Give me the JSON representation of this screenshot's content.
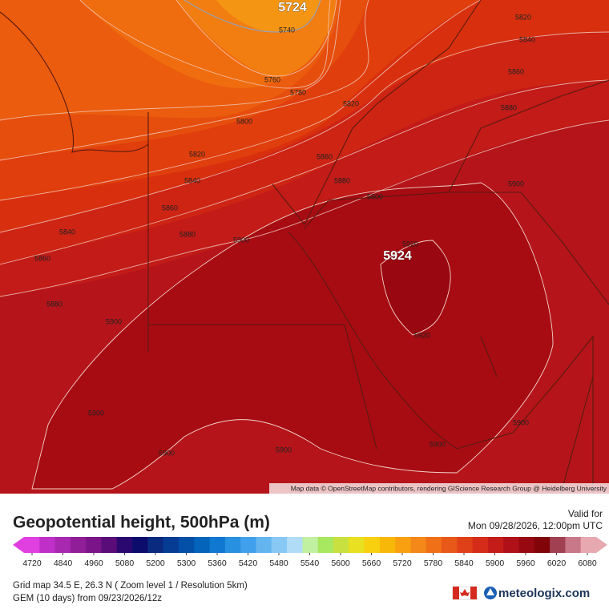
{
  "map": {
    "contour_labels": [
      "5724",
      "5740",
      "5820",
      "5840",
      "5760",
      "5780",
      "5860",
      "5820",
      "5880",
      "5800",
      "5820",
      "5860",
      "5840",
      "5880",
      "5900",
      "5900",
      "5860",
      "5840",
      "5880",
      "5900",
      "5920",
      "5924",
      "5860",
      "5880",
      "5900",
      "5920",
      "5900",
      "5900",
      "5900",
      "5900",
      "5900"
    ],
    "attribution": "Map data © OpenStreetMap contributors, rendering GIScience Research Group @ Heidelberg University"
  },
  "legend": {
    "title": "Geopotential height, 500hPa (m)",
    "valid_label": "Valid for",
    "valid_time": "Mon 09/28/2026, 12:00pm UTC",
    "colorbar_ticks": [
      4720,
      4840,
      4960,
      5080,
      5200,
      5300,
      5360,
      5420,
      5480,
      5540,
      5600,
      5660,
      5720,
      5780,
      5840,
      5900,
      5960,
      6020,
      6080
    ],
    "colorbar_colors": [
      "#e040e0",
      "#c030c8",
      "#a828b0",
      "#901e98",
      "#7a1488",
      "#5a0c78",
      "#2a0870",
      "#0c0c6c",
      "#0a2a80",
      "#063c94",
      "#0450a8",
      "#0464bc",
      "#1078d0",
      "#2890e0",
      "#40a0ec",
      "#64b4f0",
      "#88c8f4",
      "#b0dcf8",
      "#c0f0a0",
      "#a8e860",
      "#c8e040",
      "#e8e020",
      "#f8d010",
      "#f8b808",
      "#f8a010",
      "#f48818",
      "#f07018",
      "#e85818",
      "#e04018",
      "#d42c18",
      "#c41c18",
      "#b01018",
      "#980810",
      "#800408",
      "#a04050",
      "#c87888",
      "#e8a8b0"
    ],
    "grid_info": "Grid map 34.5 E, 26.3 N ( Zoom level 1 / Resolution 5km)",
    "model_info": "GEM (10 days) from 09/23/2026/12z",
    "logo": "meteologix.com"
  }
}
